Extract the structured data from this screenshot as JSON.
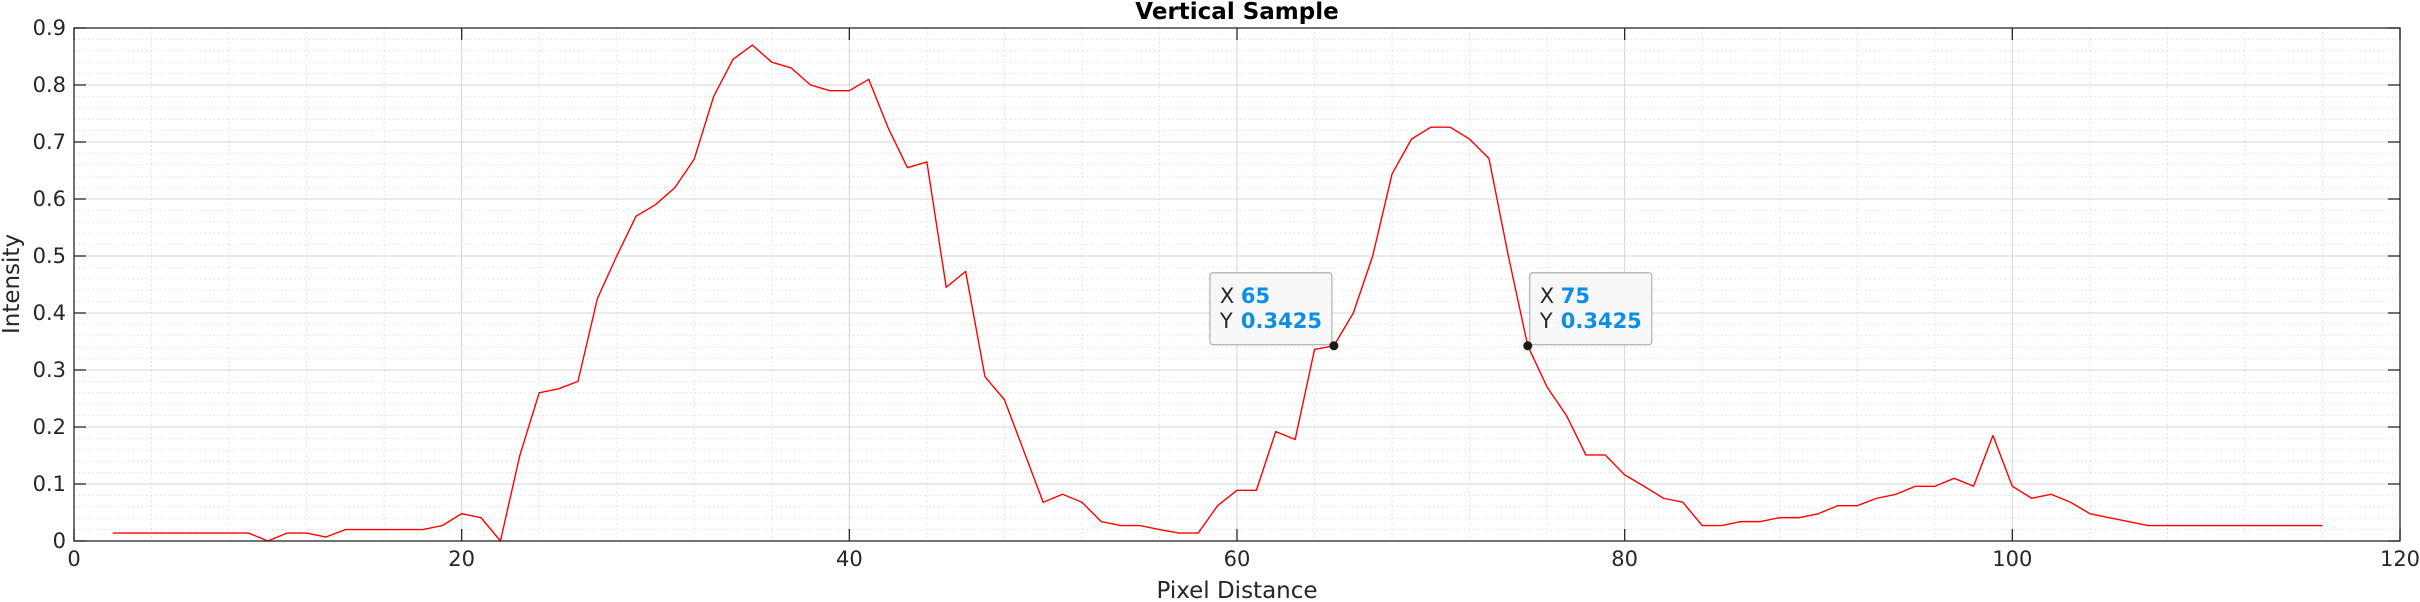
{
  "chart_data": {
    "type": "line",
    "title": "Vertical Sample",
    "xlabel": "Pixel Distance",
    "ylabel": "Intensity",
    "xlim": [
      0,
      120
    ],
    "ylim": [
      0,
      0.9
    ],
    "x_ticks": [
      "0",
      "20",
      "40",
      "60",
      "80",
      "100",
      "120"
    ],
    "y_ticks": [
      "0",
      "0.1",
      "0.2",
      "0.3",
      "0.4",
      "0.5",
      "0.6",
      "0.7",
      "0.8",
      "0.9"
    ],
    "grid": true,
    "minor_grid": true,
    "series": [
      {
        "color": "#ff0000",
        "x": [
          2,
          3,
          4,
          5,
          6,
          7,
          8,
          9,
          10,
          11,
          12,
          13,
          14,
          15,
          16,
          17,
          18,
          19,
          20,
          21,
          22,
          23,
          24,
          25,
          26,
          27,
          28,
          29,
          30,
          31,
          32,
          33,
          34,
          35,
          36,
          37,
          38,
          39,
          40,
          41,
          42,
          43,
          44,
          45,
          46,
          47,
          48,
          49,
          50,
          51,
          52,
          53,
          54,
          55,
          56,
          57,
          58,
          59,
          60,
          61,
          62,
          63,
          64,
          65,
          66,
          67,
          68,
          69,
          70,
          71,
          72,
          73,
          74,
          75,
          76,
          77,
          78,
          79,
          80,
          81,
          82,
          83,
          84,
          85,
          86,
          87,
          88,
          89,
          90,
          91,
          92,
          93,
          94,
          95,
          96,
          97,
          98,
          99,
          100,
          101,
          102,
          103,
          104,
          105,
          106,
          107,
          108,
          109,
          110,
          111,
          112,
          113,
          114,
          115,
          116
        ],
        "y": [
          0.014,
          0.014,
          0.014,
          0.014,
          0.014,
          0.014,
          0.014,
          0.014,
          0.0,
          0.014,
          0.014,
          0.007,
          0.02,
          0.02,
          0.02,
          0.02,
          0.02,
          0.027,
          0.048,
          0.041,
          0.0,
          0.15,
          0.26,
          0.267,
          0.28,
          0.425,
          0.5,
          0.57,
          0.59,
          0.62,
          0.67,
          0.78,
          0.845,
          0.87,
          0.84,
          0.83,
          0.8,
          0.79,
          0.79,
          0.81,
          0.725,
          0.655,
          0.665,
          0.445,
          0.473,
          0.288,
          0.248,
          0.158,
          0.068,
          0.082,
          0.068,
          0.034,
          0.027,
          0.027,
          0.02,
          0.014,
          0.014,
          0.062,
          0.089,
          0.089,
          0.192,
          0.178,
          0.336,
          0.3425,
          0.4,
          0.5,
          0.644,
          0.705,
          0.726,
          0.726,
          0.705,
          0.671,
          0.5,
          0.3425,
          0.27,
          0.22,
          0.151,
          0.151,
          0.116,
          0.096,
          0.075,
          0.068,
          0.027,
          0.027,
          0.034,
          0.034,
          0.041,
          0.041,
          0.048,
          0.062,
          0.062,
          0.075,
          0.082,
          0.096,
          0.096,
          0.11,
          0.096,
          0.185,
          0.096,
          0.075,
          0.082,
          0.068,
          0.048,
          0.041,
          0.034,
          0.027,
          0.027,
          0.027,
          0.027,
          0.027,
          0.027,
          0.027,
          0.027,
          0.027,
          0.027
        ]
      }
    ],
    "datatips": [
      {
        "x_key": "X",
        "x_value": "65",
        "y_key": "Y",
        "y_value": "0.3425",
        "x": 65,
        "y": 0.3425,
        "side": "left"
      },
      {
        "x_key": "X",
        "x_value": "75",
        "y_key": "Y",
        "y_value": "0.3425",
        "x": 75,
        "y": 0.3425,
        "side": "right"
      }
    ],
    "datatip_value_color": "#0b8fe4"
  }
}
